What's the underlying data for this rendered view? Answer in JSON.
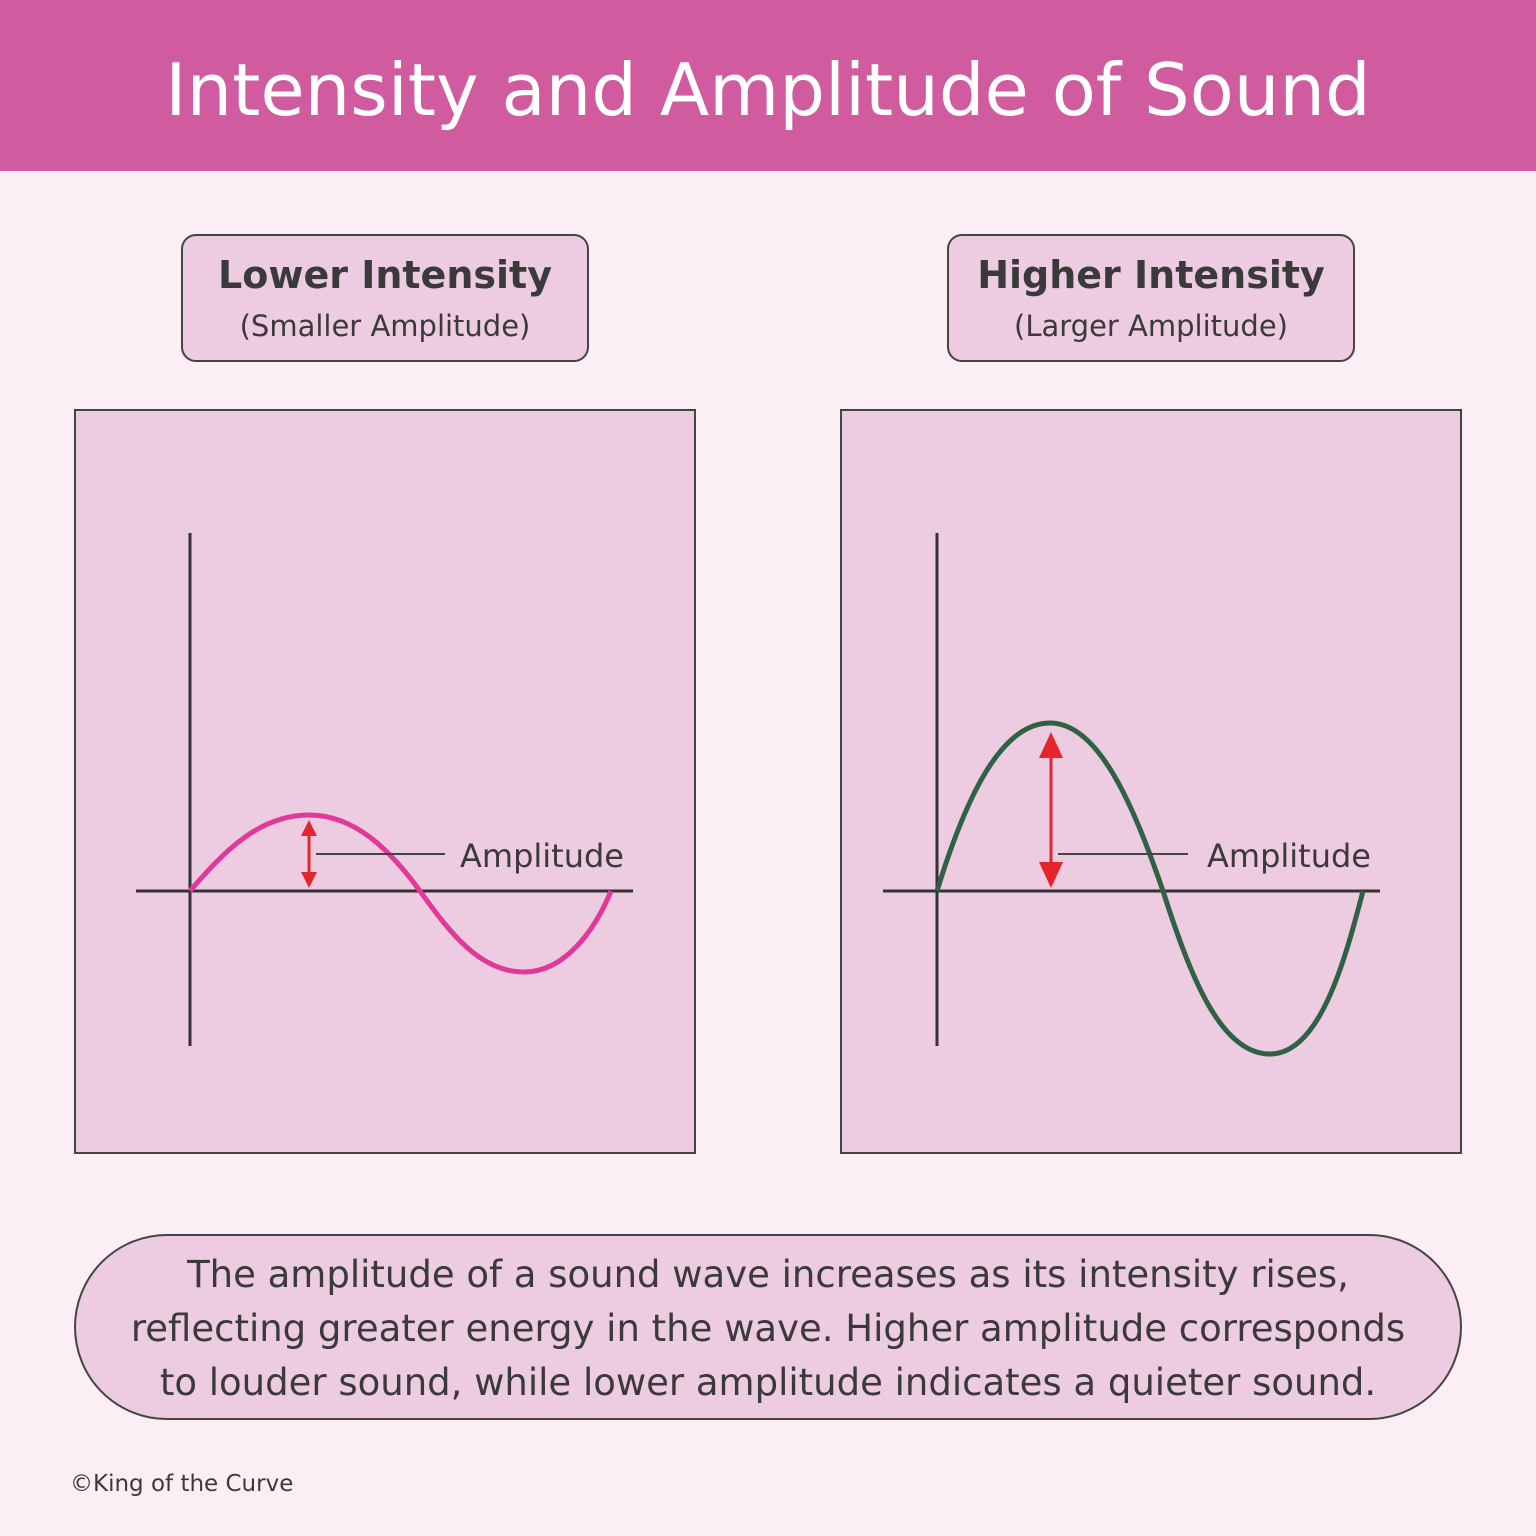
{
  "header": {
    "title": "Intensity and Amplitude of Sound"
  },
  "panels": [
    {
      "heading": "Lower Intensity",
      "subheading": "(Smaller Amplitude)",
      "amplitude_label": "Amplitude"
    },
    {
      "heading": "Higher Intensity",
      "subheading": "(Larger Amplitude)",
      "amplitude_label": "Amplitude"
    }
  ],
  "description": {
    "lines": [
      "The amplitude of a sound wave increases as its intensity rises,",
      "reflecting greater energy in the wave. Higher amplitude corresponds",
      "to louder sound, while lower amplitude indicates a quieter sound."
    ]
  },
  "footer": {
    "copyright": "©King of the Curve"
  }
}
